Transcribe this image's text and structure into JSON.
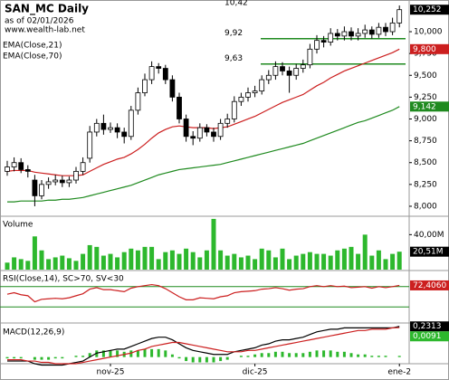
{
  "chart_data": [
    {
      "type": "candlestick",
      "title": "SAN_MC Daily",
      "subtitle": "as of 02/01/2026",
      "source": "www.wealth-lab.net",
      "open": [
        8.4,
        8.45,
        8.5,
        8.42,
        8.3,
        8.12,
        8.25,
        8.28,
        8.3,
        8.27,
        8.3,
        8.4,
        8.55,
        8.85,
        8.95,
        8.88,
        8.9,
        8.85,
        8.8,
        9.1,
        9.3,
        9.45,
        9.6,
        9.58,
        9.45,
        9.25,
        9.0,
        8.8,
        8.78,
        8.9,
        8.85,
        8.8,
        8.95,
        9.0,
        9.2,
        9.25,
        9.3,
        9.32,
        9.45,
        9.5,
        9.6,
        9.55,
        9.5,
        9.58,
        9.62,
        9.8,
        9.9,
        9.88,
        9.98,
        9.95,
        10.0,
        9.95,
        9.98,
        10.02,
        9.97,
        10.05,
        10.0,
        10.1
      ],
      "high": [
        8.52,
        8.56,
        8.55,
        8.47,
        8.36,
        8.3,
        8.33,
        8.36,
        8.35,
        8.34,
        8.45,
        8.56,
        8.92,
        9.0,
        9.05,
        8.96,
        8.95,
        8.9,
        9.15,
        9.36,
        9.52,
        9.66,
        9.64,
        9.62,
        9.5,
        9.3,
        9.05,
        8.86,
        8.95,
        8.94,
        8.9,
        9.0,
        9.06,
        9.26,
        9.3,
        9.36,
        9.38,
        9.5,
        9.56,
        9.66,
        9.65,
        9.6,
        9.63,
        9.68,
        9.86,
        9.96,
        9.95,
        10.04,
        10.03,
        10.06,
        10.05,
        10.04,
        10.08,
        10.06,
        10.1,
        10.1,
        10.16,
        10.3
      ],
      "low": [
        8.35,
        8.4,
        8.38,
        8.33,
        8.0,
        8.08,
        8.2,
        8.24,
        8.22,
        8.22,
        8.26,
        8.36,
        8.5,
        8.8,
        8.82,
        8.84,
        8.78,
        8.72,
        8.76,
        9.05,
        9.26,
        9.4,
        9.52,
        9.4,
        9.2,
        8.95,
        8.74,
        8.7,
        8.74,
        8.8,
        8.74,
        8.76,
        8.9,
        8.96,
        9.15,
        9.2,
        9.25,
        9.28,
        9.4,
        9.45,
        9.5,
        9.3,
        9.45,
        9.53,
        9.58,
        9.75,
        9.82,
        9.84,
        9.9,
        9.9,
        9.9,
        9.9,
        9.93,
        9.92,
        9.93,
        9.95,
        9.96,
        10.05
      ],
      "close": [
        8.45,
        8.5,
        8.42,
        8.4,
        8.12,
        8.25,
        8.28,
        8.3,
        8.27,
        8.3,
        8.4,
        8.5,
        8.85,
        8.95,
        8.88,
        8.9,
        8.85,
        8.8,
        9.1,
        9.3,
        9.45,
        9.6,
        9.58,
        9.45,
        9.25,
        9.0,
        8.8,
        8.78,
        8.9,
        8.85,
        8.8,
        8.95,
        9.0,
        9.2,
        9.25,
        9.3,
        9.32,
        9.45,
        9.5,
        9.6,
        9.55,
        9.5,
        9.58,
        9.62,
        9.8,
        9.9,
        9.88,
        9.98,
        9.95,
        10.0,
        9.95,
        9.98,
        10.02,
        9.97,
        10.05,
        10.0,
        10.1,
        10.252
      ],
      "last_label": "10,252",
      "up_color": "#ffffff",
      "down_color": "#000000",
      "series": [
        {
          "name": "EMA(Close,21)",
          "color": "#cc1f1f",
          "last_label": "9,800",
          "values": [
            8.4,
            8.41,
            8.41,
            8.41,
            8.39,
            8.38,
            8.37,
            8.36,
            8.35,
            8.35,
            8.35,
            8.36,
            8.4,
            8.44,
            8.48,
            8.51,
            8.54,
            8.56,
            8.6,
            8.65,
            8.71,
            8.78,
            8.84,
            8.88,
            8.91,
            8.92,
            8.91,
            8.9,
            8.9,
            8.9,
            8.89,
            8.9,
            8.91,
            8.94,
            8.97,
            9.0,
            9.03,
            9.07,
            9.11,
            9.15,
            9.19,
            9.22,
            9.25,
            9.28,
            9.33,
            9.38,
            9.42,
            9.47,
            9.51,
            9.55,
            9.58,
            9.61,
            9.64,
            9.67,
            9.7,
            9.73,
            9.76,
            9.8
          ]
        },
        {
          "name": "EMA(Close,70)",
          "color": "#1f8a1f",
          "last_label": "9,142",
          "values": [
            8.05,
            8.05,
            8.06,
            8.06,
            8.06,
            8.06,
            8.07,
            8.07,
            8.08,
            8.08,
            8.09,
            8.1,
            8.12,
            8.14,
            8.16,
            8.18,
            8.2,
            8.22,
            8.24,
            8.27,
            8.3,
            8.33,
            8.36,
            8.38,
            8.4,
            8.42,
            8.43,
            8.44,
            8.45,
            8.46,
            8.47,
            8.48,
            8.5,
            8.52,
            8.54,
            8.56,
            8.58,
            8.6,
            8.62,
            8.64,
            8.66,
            8.68,
            8.7,
            8.72,
            8.75,
            8.78,
            8.81,
            8.84,
            8.87,
            8.9,
            8.93,
            8.96,
            8.98,
            9.01,
            9.04,
            9.07,
            9.1,
            9.142
          ]
        }
      ],
      "annotations": [
        {
          "value": 10.42,
          "label": "10,42"
        },
        {
          "value": 9.92,
          "label": "9,92",
          "color": "#1f8a1f"
        },
        {
          "value": 9.63,
          "label": "9,63",
          "color": "#1f8a1f"
        }
      ],
      "ylim": [
        7.896,
        10.363
      ],
      "yticks": [
        {
          "value": 8.0,
          "label": "8,000"
        },
        {
          "value": 8.25,
          "label": "8,250"
        },
        {
          "value": 8.5,
          "label": "8,500"
        },
        {
          "value": 8.75,
          "label": "8,750"
        },
        {
          "value": 9.0,
          "label": "9,000"
        },
        {
          "value": 9.25,
          "label": "9,250"
        },
        {
          "value": 9.5,
          "label": "9,500"
        },
        {
          "value": 9.75,
          "label": "9,750"
        },
        {
          "value": 10.0,
          "label": "10,000"
        }
      ],
      "xticks": [
        {
          "value": 15,
          "label": "nov-25"
        },
        {
          "value": 36,
          "label": "dic-25"
        },
        {
          "value": 57,
          "label": "ene-2"
        }
      ]
    },
    {
      "type": "bar",
      "title": "Volume",
      "color": "#2db82d",
      "last_label": "20,51M",
      "values": [
        8,
        14,
        12,
        10,
        38,
        22,
        12,
        14,
        16,
        13,
        10,
        18,
        28,
        26,
        16,
        18,
        14,
        20,
        24,
        22,
        26,
        26,
        12,
        20,
        22,
        18,
        24,
        20,
        14,
        22,
        58,
        22,
        16,
        18,
        14,
        16,
        12,
        24,
        22,
        14,
        24,
        12,
        16,
        18,
        20,
        18,
        18,
        16,
        22,
        24,
        26,
        18,
        40,
        16,
        22,
        12,
        18,
        20.51
      ],
      "ylim": [
        0,
        60
      ],
      "yticks": [
        {
          "value": 40,
          "label": "40,00M"
        }
      ]
    },
    {
      "type": "line",
      "title": "RSI(Close,14), SC>70, SV<30",
      "color": "#cc1f1f",
      "last_label": "72,4060",
      "values": [
        55,
        58,
        54,
        52,
        40,
        45,
        46,
        47,
        46,
        48,
        52,
        56,
        65,
        68,
        64,
        64,
        62,
        60,
        67,
        70,
        72,
        74,
        72,
        66,
        58,
        50,
        44,
        44,
        48,
        47,
        46,
        50,
        52,
        58,
        60,
        61,
        62,
        65,
        66,
        68,
        66,
        63,
        65,
        66,
        70,
        72,
        70,
        72,
        70,
        71,
        68,
        69,
        70,
        67,
        70,
        68,
        70,
        72.406
      ],
      "levels": [
        70,
        30
      ],
      "level_color": "#1f8a1f",
      "ylim": [
        0,
        100
      ]
    },
    {
      "type": "macd",
      "title": "MACD(12,26,9)",
      "last_label": "0,2313",
      "series": [
        {
          "color": "#000000",
          "values": [
            -0.03,
            -0.03,
            -0.03,
            -0.03,
            -0.05,
            -0.06,
            -0.06,
            -0.06,
            -0.06,
            -0.05,
            -0.04,
            -0.03,
            0,
            0.03,
            0.04,
            0.05,
            0.06,
            0.06,
            0.08,
            0.1,
            0.12,
            0.14,
            0.15,
            0.15,
            0.13,
            0.1,
            0.07,
            0.05,
            0.04,
            0.03,
            0.02,
            0.02,
            0.02,
            0.04,
            0.05,
            0.06,
            0.07,
            0.09,
            0.1,
            0.12,
            0.13,
            0.13,
            0.14,
            0.15,
            0.17,
            0.19,
            0.2,
            0.21,
            0.21,
            0.22,
            0.22,
            0.22,
            0.22,
            0.22,
            0.22,
            0.22,
            0.22,
            0.2313
          ]
        },
        {
          "color": "#cc1f1f",
          "values": [
            -0.02,
            -0.02,
            -0.02,
            -0.03,
            -0.03,
            -0.04,
            -0.04,
            -0.05,
            -0.05,
            -0.05,
            -0.05,
            -0.04,
            -0.03,
            -0.02,
            -0.01,
            0,
            0.01,
            0.02,
            0.03,
            0.05,
            0.06,
            0.08,
            0.09,
            0.1,
            0.11,
            0.11,
            0.1,
            0.09,
            0.08,
            0.07,
            0.06,
            0.05,
            0.04,
            0.04,
            0.04,
            0.05,
            0.05,
            0.06,
            0.07,
            0.08,
            0.09,
            0.1,
            0.11,
            0.12,
            0.13,
            0.14,
            0.15,
            0.16,
            0.17,
            0.18,
            0.19,
            0.2,
            0.2,
            0.21,
            0.21,
            0.21,
            0.22,
            0.2222
          ]
        }
      ],
      "histogram": {
        "color": "#2db82d",
        "last_label": "0,0091",
        "values": [
          -0.01,
          -0.01,
          -0.01,
          0,
          -0.02,
          -0.02,
          -0.02,
          -0.01,
          -0.01,
          0,
          0.01,
          0.01,
          0.03,
          0.05,
          0.05,
          0.05,
          0.05,
          0.04,
          0.05,
          0.05,
          0.06,
          0.06,
          0.06,
          0.05,
          0.02,
          -0.01,
          -0.03,
          -0.04,
          -0.04,
          -0.04,
          -0.04,
          -0.03,
          -0.02,
          0,
          0.01,
          0.01,
          0.02,
          0.03,
          0.03,
          0.04,
          0.04,
          0.03,
          0.03,
          0.03,
          0.04,
          0.05,
          0.05,
          0.05,
          0.04,
          0.04,
          0.03,
          0.02,
          0.02,
          0.01,
          0.01,
          0.01,
          0,
          0.0091
        ]
      },
      "ylim": [
        -0.05,
        0.25
      ]
    }
  ]
}
